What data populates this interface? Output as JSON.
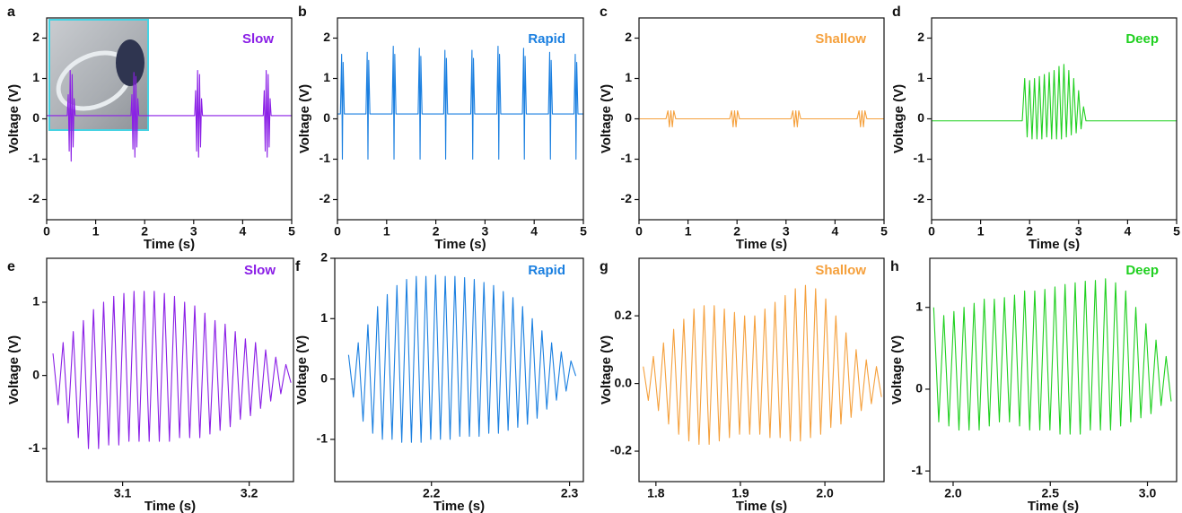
{
  "chart_data": [
    {
      "type": "line",
      "panel": "a",
      "title": "Slow",
      "x_label": "Time (s)",
      "y_label": "Voltage (V)",
      "x": [
        0,
        0.42,
        0.44,
        0.46,
        0.48,
        0.5,
        0.52,
        0.54,
        0.56,
        0.58,
        1.72,
        1.74,
        1.76,
        1.78,
        1.8,
        1.82,
        1.84,
        1.86,
        1.88,
        3.02,
        3.04,
        3.06,
        3.08,
        3.1,
        3.12,
        3.14,
        3.16,
        3.18,
        4.42,
        4.44,
        4.46,
        4.48,
        4.5,
        4.52,
        4.54,
        4.56,
        4.58,
        5
      ],
      "series": [
        {
          "color": "#8a1ee6",
          "values": [
            0.08,
            0.08,
            0.6,
            -0.8,
            1.2,
            -1.05,
            1.1,
            -0.7,
            0.5,
            0.08,
            0.08,
            0.6,
            -0.75,
            1.15,
            -0.95,
            1.05,
            -0.7,
            0.5,
            0.08,
            0.08,
            0.7,
            -0.8,
            1.2,
            -0.95,
            1.1,
            -0.7,
            0.5,
            0.08,
            0.08,
            0.7,
            -0.8,
            1.2,
            -0.95,
            1.1,
            -0.7,
            0.5,
            0.08,
            0.08
          ]
        }
      ],
      "xlim": [
        0,
        5
      ],
      "ylim": [
        -2.5,
        2.5
      ],
      "xticks": [
        0,
        1,
        2,
        3,
        4,
        5
      ],
      "yticks": [
        -2,
        -1,
        0,
        1,
        2
      ]
    },
    {
      "type": "line",
      "panel": "b",
      "title": "Rapid",
      "x_label": "Time (s)",
      "y_label": "Voltage (V)",
      "x": [
        0,
        0.06,
        0.085,
        0.1,
        0.115,
        0.14,
        0.58,
        0.605,
        0.62,
        0.635,
        0.66,
        1.11,
        1.135,
        1.15,
        1.165,
        1.19,
        1.64,
        1.665,
        1.68,
        1.695,
        1.72,
        2.16,
        2.185,
        2.2,
        2.215,
        2.24,
        2.71,
        2.735,
        2.75,
        2.765,
        2.79,
        3.24,
        3.265,
        3.28,
        3.295,
        3.32,
        3.76,
        3.785,
        3.8,
        3.815,
        3.84,
        4.29,
        4.315,
        4.33,
        4.345,
        4.37,
        4.81,
        4.835,
        4.85,
        4.865,
        4.89,
        5
      ],
      "series": [
        {
          "color": "#1a7fe0",
          "values": [
            0.12,
            0.12,
            1.6,
            -1.0,
            1.4,
            0.12,
            0.12,
            1.65,
            -1.0,
            1.45,
            0.12,
            0.12,
            1.8,
            -1.0,
            1.6,
            0.12,
            0.12,
            1.75,
            -1.0,
            1.55,
            0.12,
            0.12,
            1.7,
            -1.0,
            1.5,
            0.12,
            0.12,
            1.7,
            -1.0,
            1.5,
            0.12,
            0.12,
            1.8,
            -1.0,
            1.6,
            0.12,
            0.12,
            1.75,
            -1.0,
            1.55,
            0.12,
            0.12,
            1.65,
            -1.0,
            1.45,
            0.12,
            0.12,
            1.6,
            -1.0,
            1.4,
            0.12,
            0.12
          ]
        }
      ],
      "xlim": [
        0,
        5
      ],
      "ylim": [
        -2.5,
        2.5
      ],
      "xticks": [
        0,
        1,
        2,
        3,
        4,
        5
      ],
      "yticks": [
        -2,
        -1,
        0,
        1,
        2
      ]
    },
    {
      "type": "line",
      "panel": "c",
      "title": "Shallow",
      "x_label": "Time (s)",
      "y_label": "Voltage (V)",
      "x": [
        0,
        0.55,
        0.59,
        0.62,
        0.65,
        0.68,
        0.71,
        0.75,
        1.85,
        1.89,
        1.92,
        1.95,
        1.98,
        2.01,
        2.05,
        3.1,
        3.14,
        3.17,
        3.2,
        3.23,
        3.26,
        3.3,
        4.45,
        4.49,
        4.52,
        4.55,
        4.58,
        4.61,
        4.65,
        5
      ],
      "series": [
        {
          "color": "#f5a03c",
          "values": [
            0,
            0,
            0.2,
            -0.2,
            0.2,
            -0.2,
            0.2,
            0,
            0,
            0.2,
            -0.2,
            0.2,
            -0.2,
            0.2,
            0,
            0,
            0.2,
            -0.2,
            0.2,
            -0.2,
            0.2,
            0,
            0,
            0.2,
            -0.2,
            0.2,
            -0.2,
            0.2,
            0,
            0
          ]
        }
      ],
      "xlim": [
        0,
        5
      ],
      "ylim": [
        -2.5,
        2.5
      ],
      "xticks": [
        0,
        1,
        2,
        3,
        4,
        5
      ],
      "yticks": [
        -2,
        -1,
        0,
        1,
        2
      ]
    },
    {
      "type": "line",
      "panel": "d",
      "title": "Deep",
      "x_label": "Time (s)",
      "y_label": "Voltage (V)",
      "x": [
        0,
        1.85,
        1.9,
        1.95,
        2.0,
        2.05,
        2.1,
        2.15,
        2.2,
        2.25,
        2.3,
        2.35,
        2.4,
        2.45,
        2.5,
        2.55,
        2.6,
        2.65,
        2.7,
        2.75,
        2.8,
        2.85,
        2.9,
        2.95,
        3.0,
        3.05,
        3.1,
        3.15,
        5
      ],
      "series": [
        {
          "color": "#1fd01f",
          "values": [
            -0.05,
            -0.05,
            1.0,
            -0.45,
            0.95,
            -0.5,
            1.0,
            -0.5,
            1.05,
            -0.5,
            1.1,
            -0.45,
            1.15,
            -0.5,
            1.2,
            -0.5,
            1.3,
            -0.5,
            1.35,
            -0.45,
            1.2,
            -0.4,
            1.0,
            -0.35,
            0.7,
            -0.25,
            0.3,
            -0.05,
            -0.05
          ]
        }
      ],
      "xlim": [
        0,
        5
      ],
      "ylim": [
        -2.5,
        2.5
      ],
      "xticks": [
        0,
        1,
        2,
        3,
        4,
        5
      ],
      "yticks": [
        -2,
        -1,
        0,
        1,
        2
      ]
    },
    {
      "type": "line",
      "panel": "e",
      "title": "Slow",
      "x_label": "Time (s)",
      "y_label": "Voltage (V)",
      "x": [
        3.045,
        3.049,
        3.053,
        3.057,
        3.061,
        3.065,
        3.069,
        3.073,
        3.077,
        3.081,
        3.085,
        3.089,
        3.093,
        3.097,
        3.101,
        3.105,
        3.109,
        3.113,
        3.117,
        3.121,
        3.125,
        3.129,
        3.133,
        3.137,
        3.141,
        3.145,
        3.149,
        3.153,
        3.157,
        3.161,
        3.165,
        3.169,
        3.173,
        3.177,
        3.181,
        3.185,
        3.189,
        3.193,
        3.197,
        3.201,
        3.205,
        3.209,
        3.213,
        3.217,
        3.221,
        3.225,
        3.229,
        3.233
      ],
      "series": [
        {
          "color": "#8a1ee6",
          "values": [
            0.3,
            -0.4,
            0.45,
            -0.65,
            0.6,
            -0.85,
            0.75,
            -1.0,
            0.9,
            -1.0,
            1.0,
            -0.95,
            1.08,
            -0.95,
            1.12,
            -0.9,
            1.15,
            -0.9,
            1.15,
            -0.9,
            1.15,
            -0.9,
            1.12,
            -0.9,
            1.08,
            -0.85,
            1.0,
            -0.85,
            0.95,
            -0.85,
            0.85,
            -0.8,
            0.75,
            -0.75,
            0.7,
            -0.7,
            0.6,
            -0.6,
            0.5,
            -0.55,
            0.45,
            -0.45,
            0.35,
            -0.35,
            0.25,
            -0.25,
            0.15,
            -0.1
          ]
        }
      ],
      "xlim": [
        3.04,
        3.235
      ],
      "ylim": [
        -1.45,
        1.6
      ],
      "xticks": [
        3.1,
        3.2
      ],
      "yticks": [
        -1,
        0,
        1
      ]
    },
    {
      "type": "line",
      "panel": "f",
      "title": "Rapid",
      "x_label": "Time (s)",
      "y_label": "Voltage (V)",
      "x": [
        2.14,
        2.1435,
        2.147,
        2.1505,
        2.154,
        2.1575,
        2.161,
        2.1645,
        2.168,
        2.1715,
        2.175,
        2.1785,
        2.182,
        2.1855,
        2.189,
        2.1925,
        2.196,
        2.1995,
        2.203,
        2.2065,
        2.21,
        2.2135,
        2.217,
        2.2205,
        2.224,
        2.2275,
        2.231,
        2.2345,
        2.238,
        2.2415,
        2.245,
        2.2485,
        2.252,
        2.2555,
        2.259,
        2.2625,
        2.266,
        2.2695,
        2.273,
        2.2765,
        2.28,
        2.2835,
        2.287,
        2.2905,
        2.294,
        2.2975,
        2.301,
        2.3045
      ],
      "series": [
        {
          "color": "#1a7fe0",
          "values": [
            0.4,
            -0.3,
            0.6,
            -0.7,
            0.9,
            -0.9,
            1.2,
            -1.0,
            1.4,
            -1.0,
            1.55,
            -1.05,
            1.65,
            -1.05,
            1.7,
            -1.05,
            1.7,
            -1.0,
            1.72,
            -1.0,
            1.7,
            -1.0,
            1.7,
            -0.95,
            1.68,
            -0.95,
            1.65,
            -0.95,
            1.6,
            -0.9,
            1.55,
            -0.9,
            1.45,
            -0.85,
            1.35,
            -0.8,
            1.2,
            -0.75,
            1.0,
            -0.65,
            0.8,
            -0.5,
            0.6,
            -0.35,
            0.45,
            -0.2,
            0.3,
            0.05
          ]
        }
      ],
      "xlim": [
        2.13,
        2.31
      ],
      "ylim": [
        -1.7,
        2
      ],
      "xticks": [
        2.2,
        2.3
      ],
      "yticks": [
        -1,
        0,
        1,
        2
      ]
    },
    {
      "type": "line",
      "panel": "g",
      "title": "Shallow",
      "x_label": "Time (s)",
      "y_label": "Voltage (V)",
      "x": [
        1.785,
        1.791,
        1.797,
        1.803,
        1.809,
        1.815,
        1.821,
        1.827,
        1.833,
        1.839,
        1.845,
        1.851,
        1.857,
        1.863,
        1.869,
        1.875,
        1.881,
        1.887,
        1.893,
        1.899,
        1.905,
        1.911,
        1.917,
        1.923,
        1.929,
        1.935,
        1.941,
        1.947,
        1.953,
        1.959,
        1.965,
        1.971,
        1.977,
        1.983,
        1.989,
        1.995,
        2.001,
        2.007,
        2.013,
        2.019,
        2.025,
        2.031,
        2.037,
        2.043,
        2.049,
        2.055,
        2.061,
        2.067
      ],
      "series": [
        {
          "color": "#f5a03c",
          "values": [
            0.05,
            -0.05,
            0.08,
            -0.08,
            0.12,
            -0.12,
            0.16,
            -0.15,
            0.19,
            -0.17,
            0.22,
            -0.18,
            0.23,
            -0.18,
            0.23,
            -0.17,
            0.22,
            -0.16,
            0.21,
            -0.15,
            0.2,
            -0.15,
            0.2,
            -0.15,
            0.22,
            -0.16,
            0.24,
            -0.16,
            0.26,
            -0.17,
            0.28,
            -0.17,
            0.29,
            -0.16,
            0.28,
            -0.15,
            0.25,
            -0.13,
            0.2,
            -0.12,
            0.15,
            -0.1,
            0.1,
            -0.08,
            0.07,
            -0.06,
            0.05,
            -0.04
          ]
        }
      ],
      "xlim": [
        1.78,
        2.07
      ],
      "ylim": [
        -0.29,
        0.37
      ],
      "xticks": [
        1.8,
        1.9,
        {
          "value": 2,
          "label": "2.0"
        }
      ],
      "yticks": [
        -0.2,
        {
          "value": 0,
          "label": "0.0"
        },
        0.2
      ]
    },
    {
      "type": "line",
      "panel": "h",
      "title": "Deep",
      "x_label": "Time (s)",
      "y_label": "Voltage (V)",
      "x": [
        1.9,
        1.926,
        1.952,
        1.978,
        2.004,
        2.03,
        2.056,
        2.082,
        2.108,
        2.134,
        2.16,
        2.186,
        2.212,
        2.238,
        2.264,
        2.29,
        2.316,
        2.342,
        2.368,
        2.394,
        2.42,
        2.446,
        2.472,
        2.498,
        2.524,
        2.55,
        2.576,
        2.602,
        2.628,
        2.654,
        2.68,
        2.706,
        2.732,
        2.758,
        2.784,
        2.81,
        2.836,
        2.862,
        2.888,
        2.914,
        2.94,
        2.966,
        2.992,
        3.018,
        3.044,
        3.07,
        3.096,
        3.122
      ],
      "series": [
        {
          "color": "#1fd01f",
          "values": [
            1.0,
            -0.4,
            0.9,
            -0.45,
            0.95,
            -0.5,
            1.0,
            -0.5,
            1.05,
            -0.5,
            1.1,
            -0.45,
            1.1,
            -0.4,
            1.12,
            -0.4,
            1.15,
            -0.45,
            1.2,
            -0.5,
            1.2,
            -0.5,
            1.22,
            -0.5,
            1.25,
            -0.55,
            1.28,
            -0.55,
            1.3,
            -0.55,
            1.32,
            -0.5,
            1.33,
            -0.5,
            1.35,
            -0.5,
            1.3,
            -0.45,
            1.2,
            -0.4,
            1.0,
            -0.35,
            0.8,
            -0.3,
            0.6,
            -0.2,
            0.4,
            -0.15
          ]
        }
      ],
      "xlim": [
        1.88,
        3.15
      ],
      "ylim": [
        -1.13,
        1.6
      ],
      "xticks": [
        {
          "value": 2,
          "label": "2.0"
        },
        2.5,
        {
          "value": 3,
          "label": "3.0"
        }
      ],
      "yticks": [
        -1,
        0,
        1
      ]
    }
  ]
}
